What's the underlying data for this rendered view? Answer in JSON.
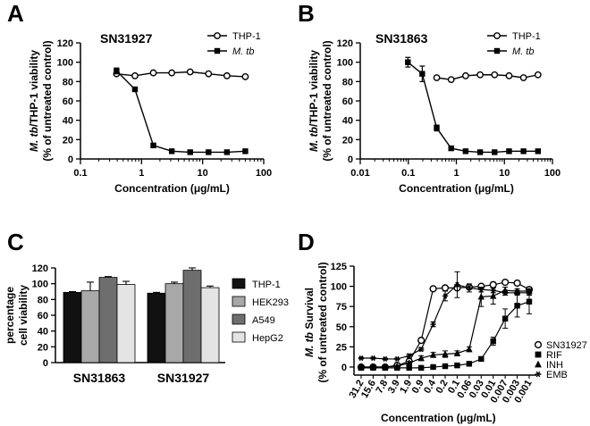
{
  "chart_data": [
    {
      "panel": "A",
      "type": "line",
      "title": "SN31927",
      "xlabel": "Concentration (μg/mL)",
      "ylabel_line1": "M. tb/THP-1 viability",
      "ylabel_line2": "(% of untreated control)",
      "xscale": "log",
      "xlim": [
        0.1,
        100
      ],
      "ylim": [
        0,
        120
      ],
      "xticks": [
        "0.1",
        "1",
        "10",
        "100"
      ],
      "yticks": [
        "0",
        "20",
        "40",
        "60",
        "80",
        "100",
        "120"
      ],
      "legend_position": "top-right",
      "series": [
        {
          "name": "THP-1",
          "marker": "open-circle",
          "x": [
            0.39,
            0.78,
            1.56,
            3.125,
            6.25,
            12.5,
            25,
            50
          ],
          "y": [
            88,
            86,
            89,
            89,
            90,
            88,
            86,
            85
          ],
          "err": [
            0,
            0,
            0,
            0,
            0,
            0,
            0,
            0
          ]
        },
        {
          "name": "M. tb",
          "marker": "filled-square",
          "x": [
            0.39,
            0.78,
            1.56,
            3.125,
            6.25,
            12.5,
            25,
            50
          ],
          "y": [
            91,
            72,
            14,
            8,
            7,
            7,
            7,
            8
          ],
          "err": [
            3,
            0,
            0,
            0,
            0,
            0,
            0,
            0
          ]
        }
      ]
    },
    {
      "panel": "B",
      "type": "line",
      "title": "SN31863",
      "xlabel": "Concentration (μg/mL)",
      "ylabel_line1": "M. tb/THP-1 viability",
      "ylabel_line2": "(% of untreated control)",
      "xscale": "log",
      "xlim": [
        0.01,
        100
      ],
      "ylim": [
        0,
        120
      ],
      "xticks": [
        "0.01",
        "0.1",
        "1",
        "10",
        "100"
      ],
      "yticks": [
        "0",
        "20",
        "40",
        "60",
        "80",
        "100",
        "120"
      ],
      "legend_position": "top-right",
      "series": [
        {
          "name": "THP-1",
          "marker": "open-circle",
          "x": [
            0.39,
            0.78,
            1.56,
            3.125,
            6.25,
            12.5,
            25,
            50
          ],
          "y": [
            84,
            82,
            86,
            87,
            87,
            86,
            84,
            87
          ],
          "err": [
            0,
            0,
            0,
            0,
            0,
            0,
            0,
            0
          ]
        },
        {
          "name": "M. tb",
          "marker": "filled-square",
          "x": [
            0.098,
            0.195,
            0.39,
            0.78,
            1.56,
            3.125,
            6.25,
            12.5,
            25,
            50
          ],
          "y": [
            100,
            88,
            32,
            11,
            8,
            7,
            7,
            8,
            8,
            8
          ],
          "err": [
            5,
            8,
            3,
            1,
            0,
            0,
            0,
            1,
            0,
            0
          ]
        }
      ]
    },
    {
      "panel": "C",
      "type": "bar",
      "ylabel_line1": "percentage",
      "ylabel_line2": "cell viability",
      "ylim": [
        0,
        120
      ],
      "yticks": [
        "0",
        "20",
        "40",
        "60",
        "80",
        "100",
        "120"
      ],
      "categories": [
        "SN31863",
        "SN31927"
      ],
      "legend_position": "right",
      "series": [
        {
          "name": "THP-1",
          "color": "#111111",
          "values": [
            89,
            88
          ],
          "err": [
            1,
            1
          ]
        },
        {
          "name": "HEK293",
          "color": "#a8a8a8",
          "values": [
            91,
            100
          ],
          "err": [
            11,
            2
          ]
        },
        {
          "name": "A549",
          "color": "#6e6e6e",
          "values": [
            108,
            117
          ],
          "err": [
            1,
            3
          ]
        },
        {
          "name": "HepG2",
          "color": "#e4e4e4",
          "values": [
            99,
            95
          ],
          "err": [
            4,
            2
          ]
        }
      ]
    },
    {
      "panel": "D",
      "type": "line",
      "xlabel": "Concentration (μg/mL)",
      "ylabel_line1": "M. tb Survival",
      "ylabel_line2": "(% of untreated control)",
      "ylim": [
        -10,
        125
      ],
      "yticks": [
        "0",
        "25",
        "50",
        "75",
        "100",
        "125"
      ],
      "categories": [
        "31.2",
        "15.6",
        "7.8",
        "3.9",
        "1.9",
        "0.9",
        "0.4",
        "0.2",
        "0.1",
        "0.06",
        "0.03",
        "0.01",
        "0.007",
        "0.003",
        "0.001"
      ],
      "legend_position": "bottom-right",
      "series": [
        {
          "name": "SN31927",
          "marker": "open-circle",
          "values": [
            0,
            0,
            0,
            2,
            7,
            33,
            97,
            98,
            98,
            99,
            100,
            102,
            105,
            104,
            96
          ],
          "err": [
            2,
            2,
            2,
            2,
            3,
            3,
            2,
            2,
            2,
            2,
            2,
            3,
            2,
            2,
            3
          ]
        },
        {
          "name": "RIF",
          "marker": "filled-square",
          "values": [
            -1,
            -1,
            -1,
            -1,
            -1,
            -1,
            0,
            1,
            2,
            4,
            10,
            32,
            60,
            76,
            81
          ],
          "err": [
            1,
            1,
            1,
            1,
            1,
            1,
            1,
            1,
            1,
            1,
            2,
            5,
            12,
            14,
            15
          ]
        },
        {
          "name": "INH",
          "marker": "filled-triangle",
          "values": [
            0,
            0,
            0,
            1,
            5,
            11,
            15,
            16,
            17,
            22,
            87,
            88,
            95,
            94,
            94
          ],
          "err": [
            1,
            1,
            1,
            1,
            2,
            3,
            3,
            4,
            3,
            3,
            12,
            10,
            4,
            3,
            3
          ]
        },
        {
          "name": "EMB",
          "marker": "star",
          "values": [
            11,
            11,
            10,
            10,
            14,
            22,
            53,
            88,
            102,
            98,
            96,
            95,
            92,
            92,
            92
          ],
          "err": [
            1,
            1,
            1,
            1,
            2,
            2,
            3,
            6,
            16,
            5,
            3,
            3,
            3,
            3,
            3
          ]
        }
      ]
    }
  ]
}
